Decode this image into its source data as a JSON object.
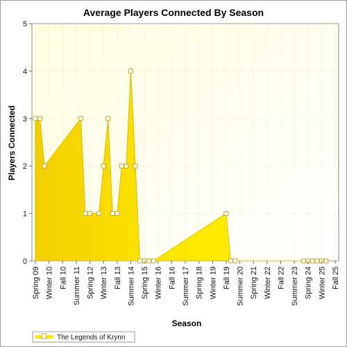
{
  "chart_data": {
    "type": "area",
    "title": "Average Players Connected By Season",
    "xlabel": "Season",
    "ylabel": "Players Connected",
    "ylim": [
      0,
      5
    ],
    "yticks": [
      0,
      1,
      2,
      3,
      4,
      5
    ],
    "grid": true,
    "legend_placement": "bottom-left",
    "categories": [
      "Spring 09",
      "Summer 09",
      "Fall 09",
      "Winter 10",
      "Spring 10",
      "Summer 10",
      "Fall 10",
      "Winter 11",
      "Spring 11",
      "Summer 11",
      "Fall 11",
      "Winter 12",
      "Spring 12",
      "Summer 12",
      "Fall 12",
      "Winter 13",
      "Spring 13",
      "Summer 13",
      "Fall 13",
      "Winter 14",
      "Spring 14",
      "Summer 14",
      "Fall 14",
      "Winter 15",
      "Spring 15",
      "Summer 15",
      "Fall 15",
      "Winter 16",
      "Spring 16",
      "Summer 16",
      "Fall 16",
      "Winter 17",
      "Spring 17",
      "Summer 17",
      "Fall 17",
      "Winter 18",
      "Spring 18",
      "Summer 18",
      "Fall 18",
      "Winter 19",
      "Spring 19",
      "Summer 19",
      "Fall 19",
      "Winter 20",
      "Spring 20",
      "Summer 20",
      "Fall 20",
      "Winter 21",
      "Spring 21",
      "Summer 21",
      "Fall 21",
      "Winter 22",
      "Spring 22",
      "Summer 22",
      "Fall 22",
      "Winter 23",
      "Spring 23",
      "Summer 23",
      "Fall 23",
      "Winter 24",
      "Spring 24",
      "Summer 24",
      "Fall 24",
      "Winter 25",
      "Spring 25",
      "Summer 25",
      "Fall 25"
    ],
    "tick_labels_shown": [
      "Spring 09",
      "Winter 10",
      "Fall 10",
      "Summer 11",
      "Spring 12",
      "Winter 13",
      "Fall 13",
      "Summer 14",
      "Spring 15",
      "Winter 16",
      "Fall 16",
      "Summer 17",
      "Spring 18",
      "Winter 19",
      "Fall 19",
      "Summer 20",
      "Spring 21",
      "Winter 22",
      "Fall 22",
      "Summer 23",
      "Spring 24",
      "Winter 25",
      "Fall 25"
    ],
    "series": [
      {
        "name": "The Legends of Krynn",
        "color": "#ffe800",
        "marker_color": "#c8a020",
        "points": [
          {
            "x": "Spring 09",
            "y": 3
          },
          {
            "x": "Summer 09",
            "y": 3
          },
          {
            "x": "Fall 09",
            "y": 2
          },
          {
            "x": "Fall 11",
            "y": 3
          },
          {
            "x": "Winter 12",
            "y": 1
          },
          {
            "x": "Spring 12",
            "y": 1
          },
          {
            "x": "Fall 12",
            "y": 1
          },
          {
            "x": "Winter 13",
            "y": 2
          },
          {
            "x": "Spring 13",
            "y": 3
          },
          {
            "x": "Summer 13",
            "y": 1
          },
          {
            "x": "Fall 13",
            "y": 1
          },
          {
            "x": "Winter 14",
            "y": 2
          },
          {
            "x": "Spring 14",
            "y": 2
          },
          {
            "x": "Summer 14",
            "y": 4
          },
          {
            "x": "Fall 14",
            "y": 2
          },
          {
            "x": "Winter 15",
            "y": 0
          },
          {
            "x": "Spring 15",
            "y": 0
          },
          {
            "x": "Summer 15",
            "y": 0
          },
          {
            "x": "Fall 15",
            "y": 0
          },
          {
            "x": "Fall 19",
            "y": 1
          },
          {
            "x": "Winter 20",
            "y": 0
          },
          {
            "x": "Spring 20",
            "y": 0
          },
          {
            "x": "Winter 24",
            "y": 0
          },
          {
            "x": "Spring 24",
            "y": 0
          },
          {
            "x": "Summer 24",
            "y": 0
          },
          {
            "x": "Fall 24",
            "y": 0
          },
          {
            "x": "Winter 25",
            "y": 0
          },
          {
            "x": "Spring 25",
            "y": 0
          }
        ]
      }
    ]
  }
}
